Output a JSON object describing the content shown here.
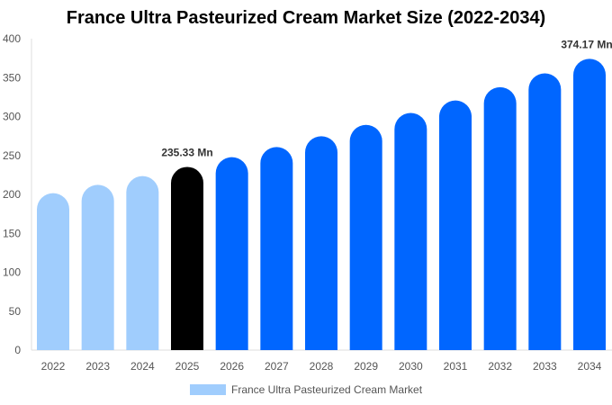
{
  "chart_data": {
    "type": "bar",
    "title": "France Ultra Pasteurized Cream Market Size (2022-2034)",
    "categories": [
      "2022",
      "2023",
      "2024",
      "2025",
      "2026",
      "2027",
      "2028",
      "2029",
      "2030",
      "2031",
      "2032",
      "2033",
      "2034"
    ],
    "series": [
      {
        "name": "France Ultra Pasteurized Cream Market",
        "values": [
          201.6,
          212.3,
          223.5,
          235.33,
          247.8,
          260.9,
          274.7,
          289.3,
          304.6,
          320.7,
          337.7,
          355.5,
          374.17
        ]
      }
    ],
    "data_labels": [
      {
        "category": "2025",
        "text": "235.33 Mn"
      },
      {
        "category": "2034",
        "text": "374.17 Mn"
      }
    ],
    "ylim": [
      0,
      400
    ],
    "yticks": [
      0,
      50,
      100,
      150,
      200,
      250,
      300,
      350,
      400
    ],
    "grid": false,
    "legend_position": "bottom",
    "colors": {
      "historical": "#a0cdfd",
      "current": "#000000",
      "forecast": "#0066ff"
    }
  }
}
